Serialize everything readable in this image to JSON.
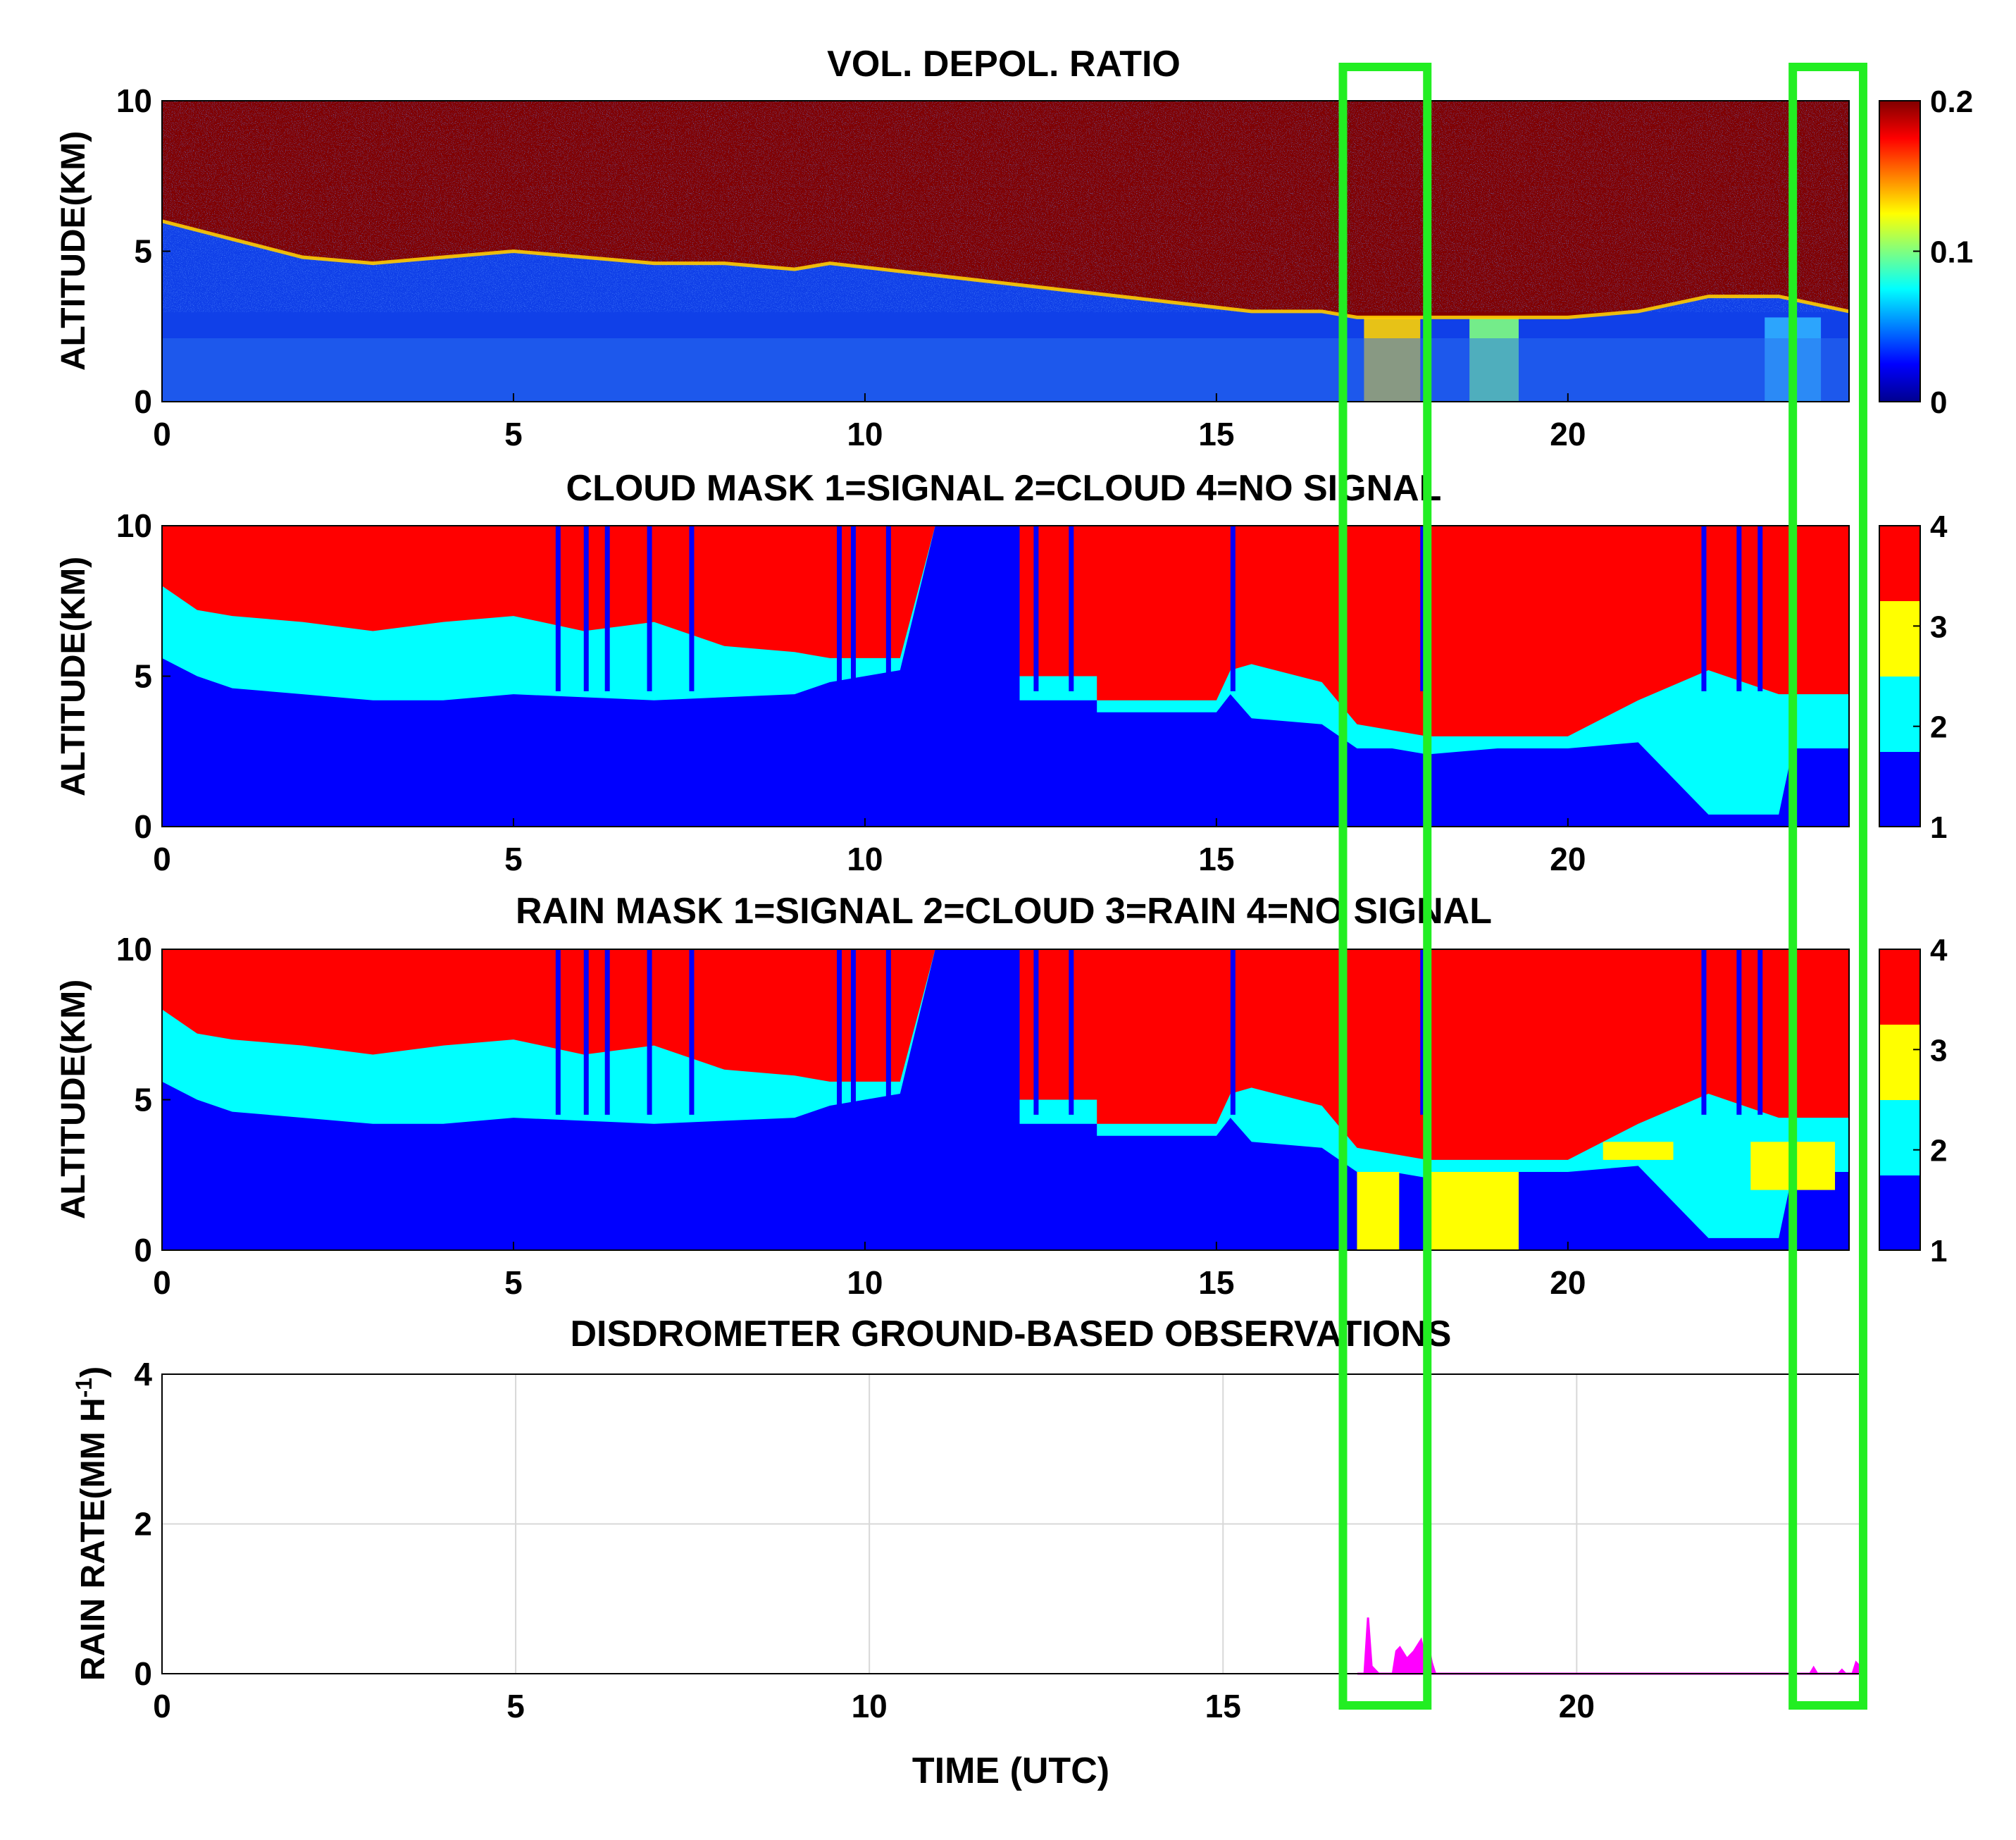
{
  "panels": [
    {
      "id": "depol",
      "title": "VOL. DEPOL. RATIO",
      "ylabel": "ALTITUDE(KM)",
      "xticks": [
        "0",
        "5",
        "10",
        "15",
        "20"
      ],
      "yticks": [
        "0",
        "5",
        "10"
      ],
      "colorbar_ticks": [
        "0",
        "0.1",
        "0.2"
      ],
      "colormap": "jet",
      "clim": [
        0,
        0.2
      ]
    },
    {
      "id": "cloud",
      "title": "CLOUD MASK 1=SIGNAL 2=CLOUD 4=NO SIGNAL",
      "ylabel": "ALTITUDE(KM)",
      "xticks": [
        "0",
        "5",
        "10",
        "15",
        "20"
      ],
      "yticks": [
        "0",
        "5",
        "10"
      ],
      "colorbar_ticks": [
        "1",
        "2",
        "3",
        "4"
      ]
    },
    {
      "id": "rain",
      "title": "RAIN MASK 1=SIGNAL 2=CLOUD 3=RAIN 4=NO SIGNAL",
      "ylabel": "ALTITUDE(KM)",
      "xticks": [
        "0",
        "5",
        "10",
        "15",
        "20"
      ],
      "yticks": [
        "0",
        "5",
        "10"
      ],
      "colorbar_ticks": [
        "1",
        "2",
        "3",
        "4"
      ]
    },
    {
      "id": "disdro",
      "title": "DISDROMETER GROUND-BASED OBSERVATIONS",
      "ylabel": "RAIN RATE(MM H",
      "ylabel_sup": "-1",
      "ylabel_end": ")",
      "xlabel": "TIME (UTC)",
      "xticks": [
        "0",
        "5",
        "10",
        "15",
        "20"
      ],
      "yticks": [
        "0",
        "2",
        "4"
      ]
    }
  ],
  "colors": {
    "signal": "#0000ff",
    "cloud": "#00ffff",
    "rain": "#ffff00",
    "no_signal": "#ff0000",
    "high_depol": "#800000",
    "rain_rate_line": "#ff00ff",
    "highlight_box": "#22ee22"
  },
  "chart_data": [
    {
      "type": "heatmap",
      "title": "VOL. DEPOL. RATIO",
      "xlabel": "",
      "ylabel": "ALTITUDE(KM)",
      "xlim": [
        0,
        24
      ],
      "ylim": [
        0,
        10
      ],
      "clim": [
        0,
        0.2
      ],
      "cloud_base_km": [
        [
          0,
          6.0
        ],
        [
          1,
          5.4
        ],
        [
          2,
          4.8
        ],
        [
          3,
          4.6
        ],
        [
          4,
          4.8
        ],
        [
          5,
          5.0
        ],
        [
          6,
          4.8
        ],
        [
          7,
          4.6
        ],
        [
          8,
          4.6
        ],
        [
          9,
          4.4
        ],
        [
          9.5,
          4.6
        ],
        [
          15.5,
          3.0
        ],
        [
          16.5,
          3.0
        ],
        [
          17,
          2.8
        ],
        [
          18,
          2.8
        ],
        [
          19,
          2.8
        ],
        [
          20,
          2.8
        ],
        [
          21,
          3.0
        ],
        [
          22,
          3.5
        ],
        [
          23,
          3.5
        ],
        [
          24,
          3.0
        ]
      ],
      "low_level_rain_depol": [
        {
          "x_start": 17.1,
          "x_end": 17.9,
          "value": 0.13
        },
        {
          "x_start": 18.6,
          "x_end": 19.3,
          "value": 0.09
        },
        {
          "x_start": 22.8,
          "x_end": 23.6,
          "value": 0.04
        }
      ]
    },
    {
      "type": "heatmap",
      "title": "CLOUD MASK 1=SIGNAL 2=CLOUD 4=NO SIGNAL",
      "xlabel": "",
      "ylabel": "ALTITUDE(KM)",
      "xlim": [
        0,
        24
      ],
      "ylim": [
        0,
        10
      ],
      "clim": [
        1,
        4
      ],
      "categories": {
        "1": "SIGNAL",
        "2": "CLOUD",
        "4": "NO SIGNAL"
      },
      "signal_top_km": [
        [
          0,
          5.6
        ],
        [
          0.5,
          5.0
        ],
        [
          1,
          4.6
        ],
        [
          2,
          4.4
        ],
        [
          3,
          4.2
        ],
        [
          4,
          4.2
        ],
        [
          5,
          4.4
        ],
        [
          6,
          4.3
        ],
        [
          7,
          4.2
        ],
        [
          8,
          4.3
        ],
        [
          9,
          4.4
        ],
        [
          9.5,
          4.8
        ],
        [
          10.5,
          5.2
        ],
        [
          11,
          10
        ],
        [
          12.2,
          10
        ],
        [
          12.2,
          4.2
        ],
        [
          13.3,
          4.2
        ],
        [
          13.3,
          3.8
        ],
        [
          15.0,
          3.8
        ],
        [
          15.2,
          4.4
        ],
        [
          15.5,
          3.6
        ],
        [
          16.5,
          3.4
        ],
        [
          17,
          2.6
        ],
        [
          17.5,
          2.6
        ],
        [
          18,
          2.4
        ],
        [
          19,
          2.6
        ],
        [
          20,
          2.6
        ],
        [
          21,
          2.8
        ],
        [
          22,
          0.4
        ],
        [
          23,
          0.4
        ],
        [
          23.2,
          2.6
        ],
        [
          24,
          2.6
        ]
      ],
      "cloud_top_km": [
        [
          0,
          8.0
        ],
        [
          0.5,
          7.2
        ],
        [
          1,
          7.0
        ],
        [
          2,
          6.8
        ],
        [
          3,
          6.5
        ],
        [
          4,
          6.8
        ],
        [
          5,
          7.0
        ],
        [
          6,
          6.5
        ],
        [
          7,
          6.8
        ],
        [
          8,
          6.0
        ],
        [
          9,
          5.8
        ],
        [
          9.5,
          5.6
        ],
        [
          10.5,
          5.6
        ],
        [
          11,
          10
        ],
        [
          12.2,
          10
        ],
        [
          12.2,
          5.0
        ],
        [
          13.3,
          5.0
        ],
        [
          13.3,
          4.2
        ],
        [
          15.0,
          4.2
        ],
        [
          15.2,
          5.2
        ],
        [
          15.5,
          5.4
        ],
        [
          16.5,
          4.8
        ],
        [
          17,
          3.4
        ],
        [
          18,
          3.0
        ],
        [
          19,
          3.0
        ],
        [
          20,
          3.0
        ],
        [
          21,
          4.2
        ],
        [
          22,
          5.2
        ],
        [
          23,
          4.4
        ],
        [
          24,
          4.4
        ]
      ]
    },
    {
      "type": "heatmap",
      "title": "RAIN MASK 1=SIGNAL 2=CLOUD 3=RAIN 4=NO SIGNAL",
      "xlabel": "",
      "ylabel": "ALTITUDE(KM)",
      "xlim": [
        0,
        24
      ],
      "ylim": [
        0,
        10
      ],
      "clim": [
        1,
        4
      ],
      "categories": {
        "1": "SIGNAL",
        "2": "CLOUD",
        "3": "RAIN",
        "4": "NO SIGNAL"
      },
      "rain_regions": [
        {
          "x_start": 17.0,
          "x_end": 17.6,
          "y_bottom": 0,
          "y_top": 2.6
        },
        {
          "x_start": 18.0,
          "x_end": 19.3,
          "y_bottom": 0,
          "y_top": 2.6
        },
        {
          "x_start": 20.5,
          "x_end": 21.5,
          "y_bottom": 3.0,
          "y_top": 3.6
        },
        {
          "x_start": 22.6,
          "x_end": 23.8,
          "y_bottom": 2.0,
          "y_top": 3.6
        }
      ]
    },
    {
      "type": "line",
      "title": "DISDROMETER GROUND-BASED OBSERVATIONS",
      "xlabel": "TIME (UTC)",
      "ylabel": "RAIN RATE(MM H-1)",
      "xlim": [
        0,
        24
      ],
      "ylim": [
        0,
        4
      ],
      "grid": true,
      "series": [
        {
          "x": [
            16.9,
            17.0,
            17.05,
            17.1,
            17.2,
            17.4,
            17.45,
            17.5,
            17.6,
            17.7,
            17.8,
            17.85,
            17.9,
            17.95,
            18.0,
            23.3,
            23.35,
            23.4,
            23.7,
            23.75,
            23.8,
            23.9,
            23.95,
            24.0
          ],
          "y": [
            0,
            0,
            0.75,
            0.1,
            0,
            0,
            0.3,
            0.35,
            0.2,
            0.3,
            0.45,
            0.25,
            0.4,
            0.15,
            0,
            0,
            0.08,
            0,
            0,
            0.05,
            0,
            0,
            0.15,
            0.1
          ]
        }
      ],
      "highlight_windows": [
        [
          16.8,
          18.0
        ],
        [
          23.2,
          24.2
        ]
      ]
    }
  ]
}
